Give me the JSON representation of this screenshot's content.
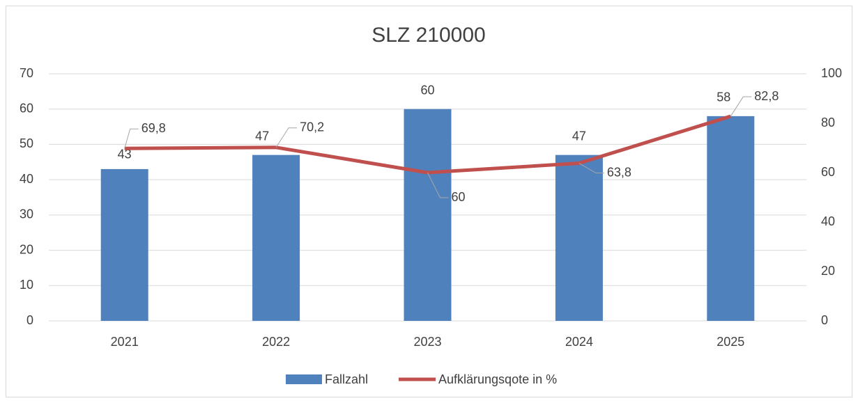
{
  "chart_data": {
    "type": "combo",
    "title": "SLZ 210000",
    "categories": [
      "2021",
      "2022",
      "2023",
      "2024",
      "2025"
    ],
    "series": [
      {
        "name": "Fallzahl",
        "type": "bar",
        "color": "#4f81bd",
        "values": [
          43,
          47,
          60,
          47,
          58
        ]
      },
      {
        "name": "Aufklärungsqote in %",
        "type": "line",
        "axis": "y2",
        "color": "#c0504d",
        "values": [
          69.8,
          70.2,
          60,
          63.8,
          82.8
        ],
        "value_labels": [
          "69,8",
          "70,2",
          "60",
          "63,8",
          "82,8"
        ]
      }
    ],
    "ylim": [
      0,
      70
    ],
    "yticks": [
      0,
      10,
      20,
      30,
      40,
      50,
      60,
      70
    ],
    "y2lim": [
      0,
      100
    ],
    "y2ticks": [
      0,
      20,
      40,
      60,
      80,
      100
    ],
    "grid": true,
    "legend": "bottom"
  }
}
